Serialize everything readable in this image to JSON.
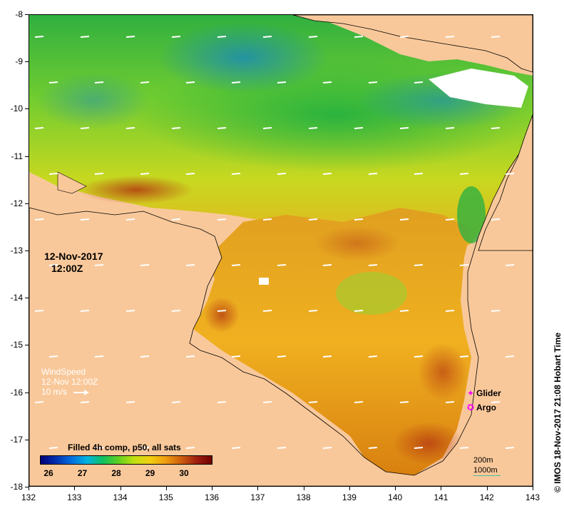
{
  "map": {
    "title_date": "12-Nov-2017",
    "title_time": "12:00Z",
    "x_axis": {
      "ticks": [
        "132",
        "133",
        "134",
        "135",
        "136",
        "137",
        "138",
        "139",
        "140",
        "141",
        "142",
        "143"
      ],
      "range": [
        132,
        143
      ]
    },
    "y_axis": {
      "ticks": [
        "-8",
        "-9",
        "-10",
        "-11",
        "-12",
        "-13",
        "-14",
        "-15",
        "-16",
        "-17",
        "-18"
      ],
      "range": [
        -8,
        -18
      ]
    },
    "land_color": "#f9c89a",
    "ocean_warm_color": "#e89a20"
  },
  "wind": {
    "label": "WindSpeed",
    "time": "12-Nov 12:00Z",
    "scale": "10 m/s"
  },
  "legend": {
    "items": [
      {
        "symbol": "✦",
        "label": "Glider",
        "color": "#ff00ff"
      },
      {
        "symbol": "✪",
        "label": "Argo",
        "color": "#ff00ff"
      }
    ]
  },
  "colorbar": {
    "title": "Filled 4h comp, p50, all sats",
    "ticks": [
      "26",
      "27",
      "28",
      "29",
      "30"
    ]
  },
  "scale": {
    "contour_200": "200m",
    "contour_1000": "1000m",
    "color_200": "#888888",
    "color_1000": "#40c0a0"
  },
  "credit": "© IMOS 18-Nov-2017 21:08 Hobart Time"
}
